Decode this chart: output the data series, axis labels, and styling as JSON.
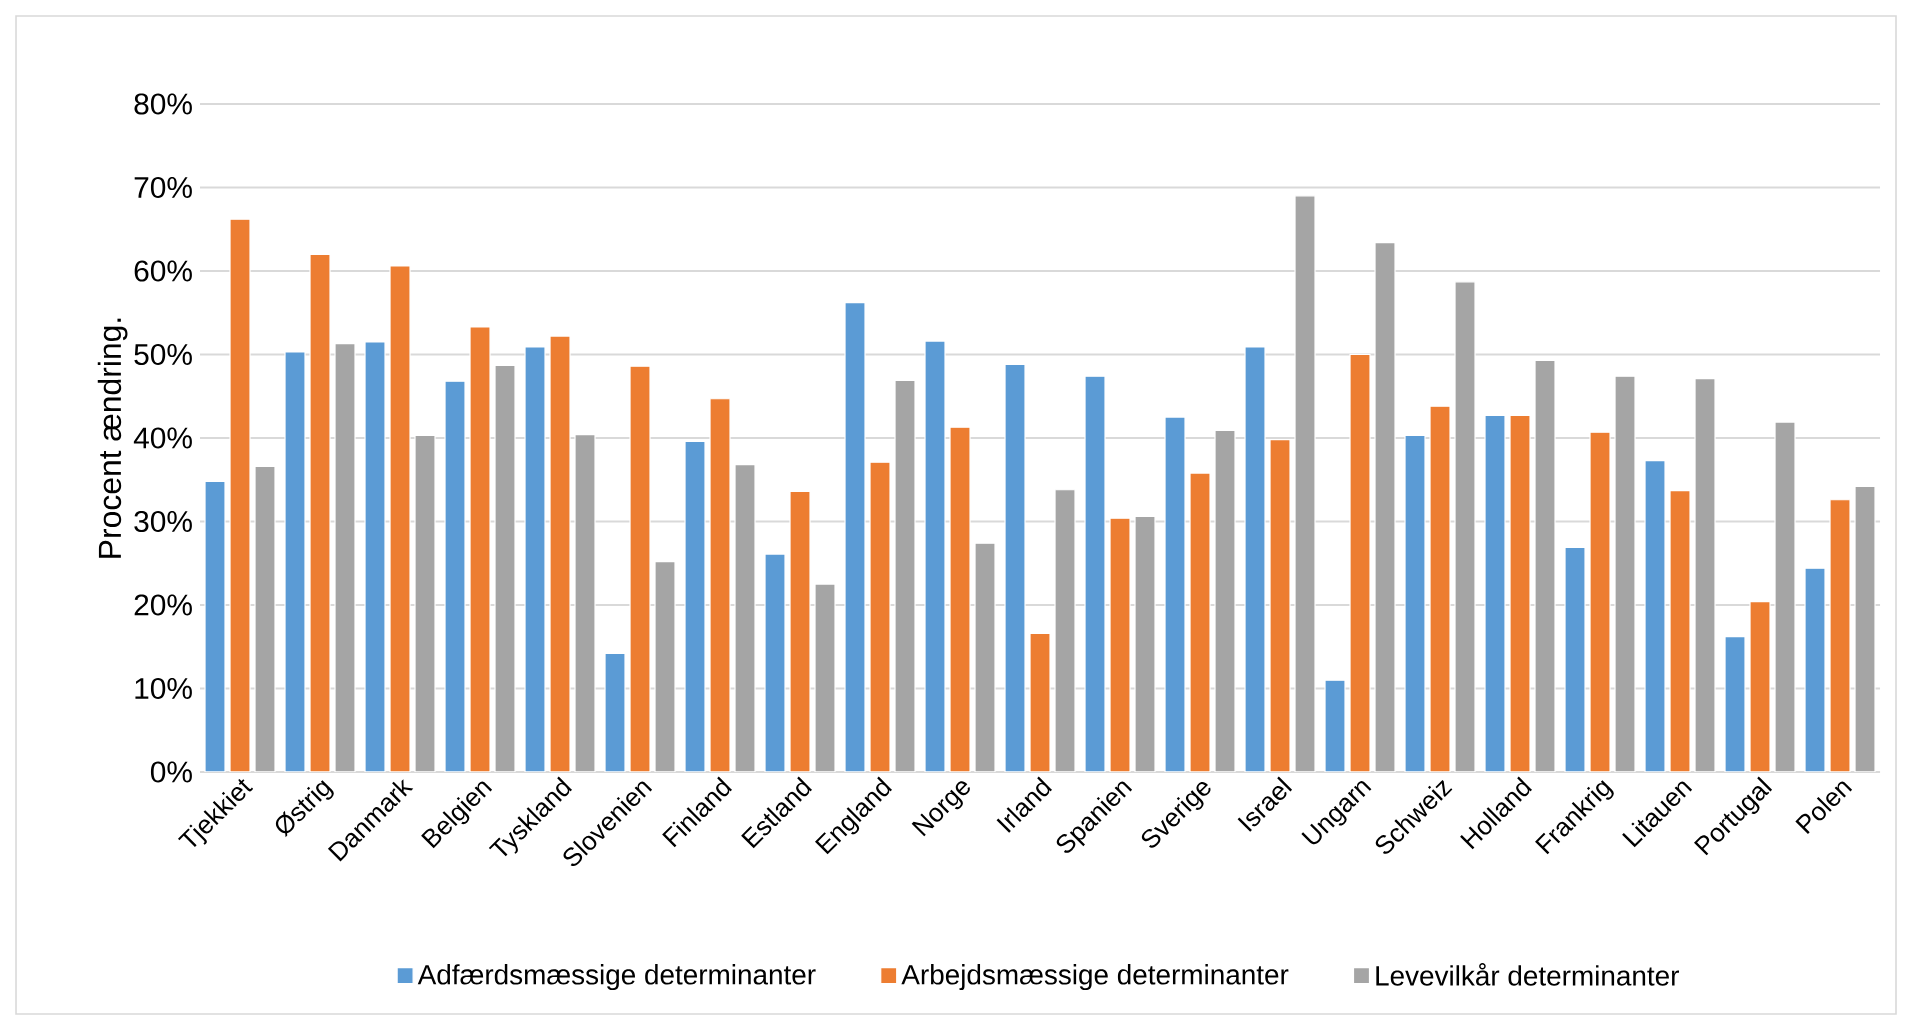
{
  "chart_data": {
    "type": "bar",
    "ylabel": "Procent ændring.",
    "categories": [
      "Tjekkiet",
      "Østrig",
      "Danmark",
      "Belgien",
      "Tyskland",
      "Slovenien",
      "Finland",
      "Estland",
      "England",
      "Norge",
      "Irland",
      "Spanien",
      "Sverige",
      "Israel",
      "Ungarn",
      "Schweiz",
      "Holland",
      "Frankrig",
      "Litauen",
      "Portugal",
      "Polen"
    ],
    "series": [
      {
        "name": "Adfærdsmæssige determinanter",
        "color": "#5b9bd5",
        "values": [
          34.8,
          50.3,
          51.5,
          46.8,
          50.9,
          14.2,
          39.6,
          26.1,
          56.2,
          51.6,
          48.8,
          47.4,
          42.5,
          50.9,
          11.0,
          40.3,
          42.7,
          26.9,
          37.3,
          16.2,
          24.4
        ]
      },
      {
        "name": "Arbejdsmæssige determinanter",
        "color": "#ed7d31",
        "values": [
          66.2,
          62.0,
          60.6,
          53.3,
          52.2,
          48.6,
          44.7,
          33.6,
          37.1,
          41.3,
          16.6,
          30.4,
          35.8,
          39.8,
          50.0,
          43.8,
          42.7,
          40.7,
          33.7,
          20.4,
          32.6
        ]
      },
      {
        "name": "Levevilkår determinanter",
        "color": "#a5a5a5",
        "values": [
          36.6,
          51.3,
          40.3,
          48.7,
          40.4,
          25.2,
          36.8,
          22.5,
          46.9,
          27.4,
          33.8,
          30.6,
          40.9,
          69.0,
          63.4,
          58.7,
          49.3,
          47.4,
          47.1,
          41.9,
          34.2
        ]
      }
    ],
    "ylim": [
      0,
      80
    ],
    "yticks": [
      {
        "value": 0,
        "label": "0%"
      },
      {
        "value": 10,
        "label": "10%"
      },
      {
        "value": 20,
        "label": "20%"
      },
      {
        "value": 30,
        "label": "30%"
      },
      {
        "value": 40,
        "label": "40%"
      },
      {
        "value": 50,
        "label": "50%"
      },
      {
        "value": 60,
        "label": "60%"
      },
      {
        "value": 70,
        "label": "70%"
      },
      {
        "value": 80,
        "label": "80%"
      }
    ],
    "grid": "y",
    "legend": "bottom"
  }
}
